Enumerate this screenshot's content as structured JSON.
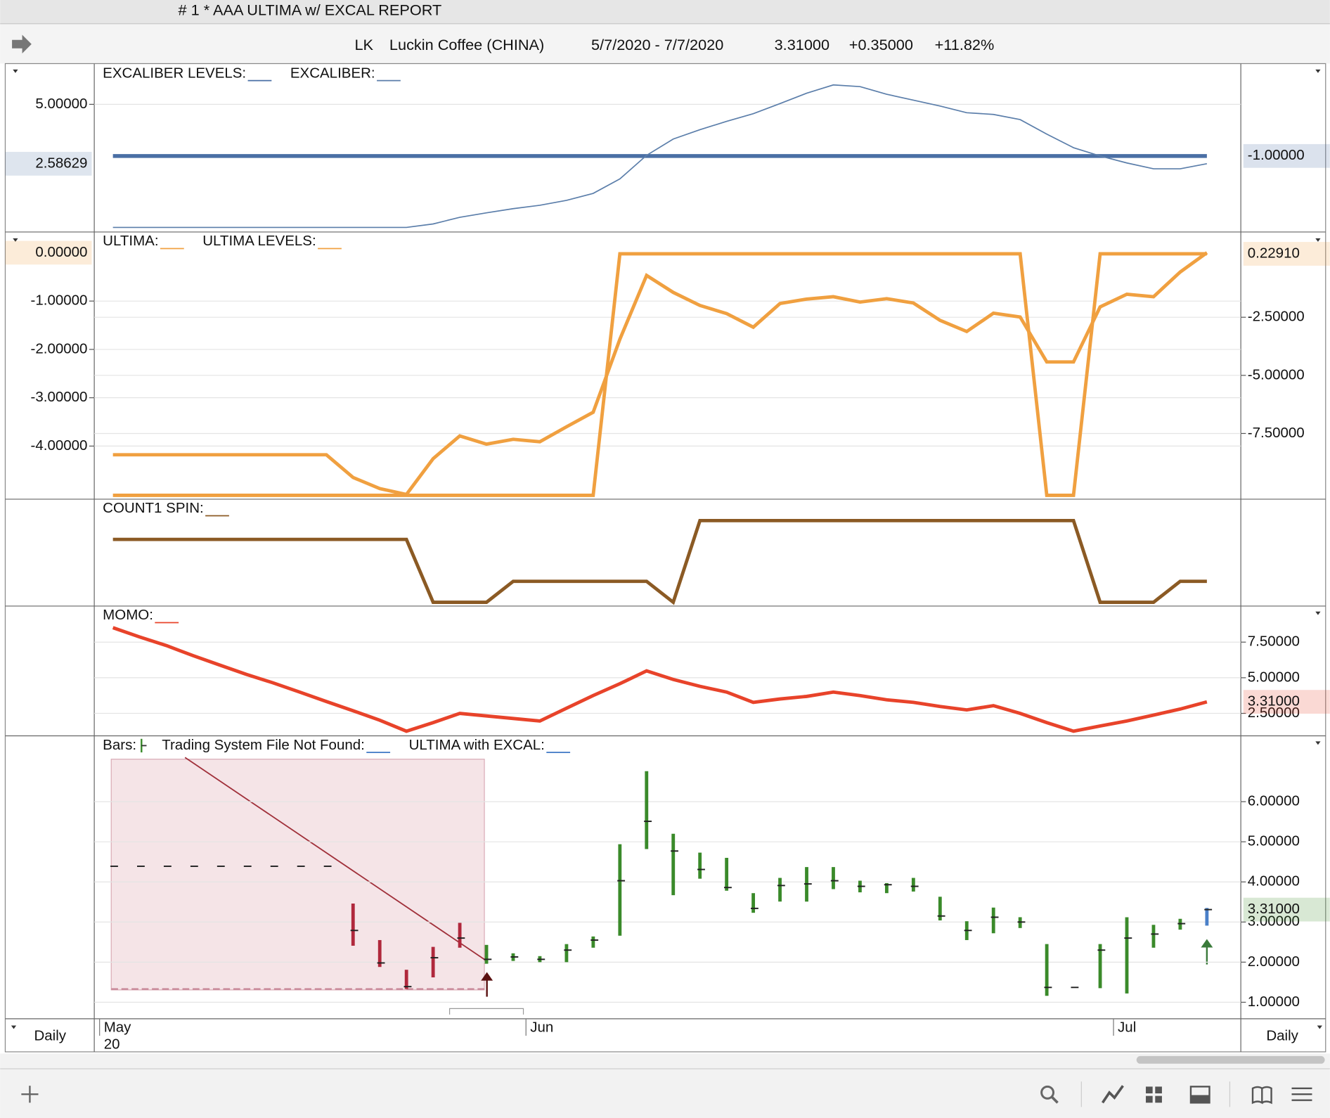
{
  "window_title": "# 1 * AAA ULTIMA w/ EXCAL REPORT",
  "symbol_bar": {
    "symbol": "LK",
    "name": "Luckin Coffee (CHINA)",
    "date_range": "5/7/2020 - 7/7/2020",
    "last": "3.31000",
    "change": "+0.35000",
    "change_pct": "+11.82%"
  },
  "chart_data": [
    {
      "type": "line",
      "grid": true,
      "last_value_badge": true,
      "series": [
        {
          "name": "EXCALIBER LEVELS:",
          "color": "#4a6fa5",
          "axis": "y2",
          "values": [
            -1,
            -1,
            -1,
            -1,
            -1,
            -1,
            -1,
            -1,
            -1,
            -1,
            -1,
            -1,
            -1,
            -1,
            -1,
            -1,
            -1,
            -1,
            -1,
            -1,
            -1,
            -1,
            -1,
            -1,
            -1,
            -1,
            -1,
            -1,
            -1,
            -1,
            -1,
            -1,
            -1,
            -1,
            -1,
            -1,
            -1,
            -1,
            -1,
            -1,
            -1,
            -1
          ],
          "value_labels": [
            null,
            null,
            null,
            null,
            null,
            null,
            null,
            null,
            null,
            null,
            null,
            null,
            null,
            null,
            null,
            null,
            null,
            null,
            null,
            null,
            null,
            null,
            null,
            null,
            null,
            null,
            null,
            null,
            null,
            null,
            null,
            null,
            null,
            null,
            null,
            null,
            null,
            null,
            null,
            null,
            null,
            "-1.00000"
          ]
        },
        {
          "name": "EXCALIBER:",
          "color": "#5b7eaa",
          "values": [
            0,
            0,
            0,
            0,
            0,
            0,
            0,
            0,
            0,
            0,
            0,
            0,
            0.14,
            0.41,
            0.59,
            0.76,
            0.9,
            1.1,
            1.38,
            1.97,
            2.93,
            3.59,
            3.97,
            4.31,
            4.62,
            5.03,
            5.45,
            5.79,
            5.72,
            5.41,
            5.17,
            4.93,
            4.66,
            4.59,
            4.38,
            3.79,
            3.24,
            2.9,
            2.62,
            2.38,
            2.38,
            2.58629
          ]
        }
      ],
      "ylim": [
        -0.17,
        6.62
      ],
      "yticks": [
        {
          "value": 5,
          "label": "5.00000"
        }
      ],
      "y2lim": [
        -2,
        0.21
      ],
      "y2ticks": []
    },
    {
      "type": "line",
      "grid": true,
      "last_value_badge": true,
      "series": [
        {
          "name": "ULTIMA:",
          "color": "#f0a040",
          "values": [
            -4.18,
            -4.18,
            -4.18,
            -4.18,
            -4.18,
            -4.18,
            -4.18,
            -4.18,
            -4.18,
            -4.65,
            -4.88,
            -5.0,
            -4.26,
            -3.79,
            -3.96,
            -3.86,
            -3.91,
            -3.6,
            -3.3,
            -1.79,
            -0.47,
            -0.82,
            -1.09,
            -1.26,
            -1.54,
            -1.05,
            -0.96,
            -0.91,
            -1.02,
            -0.95,
            -1.04,
            -1.4,
            -1.63,
            -1.25,
            -1.33,
            -2.26,
            -2.26,
            -1.12,
            -0.86,
            -0.91,
            -0.4,
            0
          ],
          "value_labels": [
            null,
            null,
            null,
            null,
            null,
            null,
            null,
            null,
            null,
            null,
            null,
            null,
            null,
            null,
            null,
            null,
            null,
            null,
            null,
            null,
            null,
            null,
            null,
            null,
            null,
            null,
            null,
            null,
            null,
            null,
            null,
            null,
            null,
            null,
            null,
            null,
            null,
            null,
            null,
            null,
            null,
            "0.00000"
          ]
        },
        {
          "name": "ULTIMA LEVELS:",
          "color": "#f0a040",
          "axis": "y2",
          "values": [
            -10.16,
            -10.16,
            -10.16,
            -10.16,
            -10.16,
            -10.16,
            -10.16,
            -10.16,
            -10.16,
            -10.16,
            -10.16,
            -10.16,
            -10.16,
            -10.16,
            -10.16,
            -10.16,
            -10.16,
            -10.16,
            -10.16,
            0.2291,
            0.2291,
            0.2291,
            0.2291,
            0.2291,
            0.2291,
            0.2291,
            0.2291,
            0.2291,
            0.2291,
            0.2291,
            0.2291,
            0.2291,
            0.2291,
            0.2291,
            0.2291,
            -10.16,
            -10.16,
            0.2291,
            0.2291,
            0.2291,
            0.2291,
            0.2291
          ],
          "value_labels": [
            null,
            null,
            null,
            null,
            null,
            null,
            null,
            null,
            null,
            null,
            null,
            null,
            null,
            null,
            null,
            null,
            null,
            null,
            null,
            null,
            null,
            null,
            null,
            null,
            null,
            null,
            null,
            null,
            null,
            null,
            null,
            null,
            null,
            null,
            null,
            null,
            null,
            null,
            null,
            null,
            null,
            "0.22910"
          ]
        }
      ],
      "ylim": [
        -5.09,
        0.42
      ],
      "yticks": [
        {
          "value": -1,
          "label": "-1.00000"
        },
        {
          "value": -2,
          "label": "-2.00000"
        },
        {
          "value": -3,
          "label": "-3.00000"
        },
        {
          "value": -4,
          "label": "-4.00000"
        }
      ],
      "y2lim": [
        -10.31,
        1.15
      ],
      "y2ticks": [
        {
          "value": -2.5,
          "label": "-2.50000"
        },
        {
          "value": -5,
          "label": "-5.00000"
        },
        {
          "value": -7.5,
          "label": "-7.50000"
        }
      ]
    },
    {
      "type": "line",
      "grid": false,
      "last_value_badge": false,
      "series": [
        {
          "name": "COUNT1 SPIN:",
          "color": "#8b5a24",
          "values": [
            3,
            3,
            3,
            3,
            3,
            3,
            3,
            3,
            3,
            3,
            3,
            3,
            0,
            0,
            0,
            1,
            1,
            1,
            1,
            1,
            1,
            0,
            3.9,
            3.9,
            3.9,
            3.9,
            3.9,
            3.9,
            3.9,
            3.9,
            3.9,
            3.9,
            3.9,
            3.9,
            3.9,
            3.9,
            3.9,
            0,
            0,
            0,
            1,
            1
          ]
        }
      ],
      "ylim": [
        -0.16,
        4.9
      ],
      "yticks": []
    },
    {
      "type": "line",
      "grid": true,
      "last_value_badge": true,
      "series": [
        {
          "name": "MOMO:",
          "color": "#e8432a",
          "axis": "y2",
          "values": [
            8.51,
            7.86,
            7.26,
            6.55,
            5.89,
            5.24,
            4.64,
            3.99,
            3.33,
            2.68,
            2.02,
            1.25,
            1.85,
            2.5,
            2.32,
            2.14,
            1.96,
            2.86,
            3.75,
            4.58,
            5.48,
            4.88,
            4.4,
            3.99,
            3.27,
            3.51,
            3.69,
            3.99,
            3.75,
            3.45,
            3.27,
            2.98,
            2.74,
            3.04,
            2.5,
            1.85,
            1.25,
            1.61,
            1.96,
            2.38,
            2.8,
            3.31
          ],
          "value_labels": [
            null,
            null,
            null,
            null,
            null,
            null,
            null,
            null,
            null,
            null,
            null,
            null,
            null,
            null,
            null,
            null,
            null,
            null,
            null,
            null,
            null,
            null,
            null,
            null,
            null,
            null,
            null,
            null,
            null,
            null,
            null,
            null,
            null,
            null,
            null,
            null,
            null,
            null,
            null,
            null,
            null,
            "3.31000"
          ]
        }
      ],
      "ylim": [
        1.01,
        10
      ],
      "yticks": [],
      "y2lim": [
        1.01,
        10
      ],
      "y2ticks": [
        {
          "value": 7.5,
          "label": "7.50000"
        },
        {
          "value": 5,
          "label": "5.00000"
        },
        {
          "value": 2.5,
          "label": "2.50000"
        }
      ]
    },
    {
      "type": "ohlc",
      "grid": true,
      "last_value_badge": true,
      "series": [
        {
          "name": "Bars:",
          "color": "#3a8a2a",
          "axis": "y2",
          "high": [
            4.39,
            4.39,
            4.39,
            4.39,
            4.39,
            4.39,
            4.39,
            4.39,
            4.39,
            3.46,
            2.55,
            1.81,
            2.38,
            2.98,
            2.43,
            2.22,
            2.15,
            2.45,
            2.64,
            4.94,
            6.76,
            5.2,
            4.73,
            4.6,
            3.72,
            4.1,
            4.37,
            4.37,
            4.03,
            3.97,
            4.1,
            3.63,
            3.02,
            3.36,
            3.12,
            2.45,
            1.37,
            2.45,
            3.12,
            2.93,
            3.08,
            3.35
          ],
          "low": [
            4.39,
            4.39,
            4.39,
            4.39,
            4.39,
            4.39,
            4.39,
            4.39,
            4.39,
            2.41,
            1.88,
            1.33,
            1.62,
            2.36,
            1.96,
            2.03,
            2.0,
            2.0,
            2.36,
            2.66,
            4.82,
            3.67,
            4.08,
            3.78,
            3.23,
            3.51,
            3.51,
            3.82,
            3.74,
            3.72,
            3.76,
            3.04,
            2.55,
            2.72,
            2.85,
            1.16,
            1.37,
            1.35,
            1.22,
            2.36,
            2.81,
            2.91
          ],
          "close": [
            4.39,
            4.39,
            4.39,
            4.39,
            4.39,
            4.39,
            4.39,
            4.39,
            4.39,
            2.79,
            1.98,
            1.39,
            2.11,
            2.6,
            2.07,
            2.13,
            2.07,
            2.3,
            2.55,
            4.03,
            5.51,
            4.77,
            4.31,
            3.86,
            3.34,
            3.91,
            3.95,
            4.03,
            3.89,
            3.93,
            3.89,
            3.15,
            2.79,
            3.12,
            3.0,
            1.37,
            1.37,
            2.3,
            2.6,
            2.7,
            2.96,
            3.31
          ],
          "colors": [
            "#333333",
            "#333333",
            "#333333",
            "#333333",
            "#333333",
            "#333333",
            "#333333",
            "#333333",
            "#333333",
            "#b0283c",
            "#b0283c",
            "#b0283c",
            "#b0283c",
            "#b0283c",
            "#3a8a2a",
            "#3a8a2a",
            "#3a8a2a",
            "#3a8a2a",
            "#3a8a2a",
            "#3a8a2a",
            "#3a8a2a",
            "#3a8a2a",
            "#3a8a2a",
            "#3a8a2a",
            "#3a8a2a",
            "#3a8a2a",
            "#3a8a2a",
            "#3a8a2a",
            "#3a8a2a",
            "#3a8a2a",
            "#3a8a2a",
            "#3a8a2a",
            "#3a8a2a",
            "#3a8a2a",
            "#3a8a2a",
            "#3a8a2a",
            "#3a8a2a",
            "#3a8a2a",
            "#3a8a2a",
            "#3a8a2a",
            "#3a8a2a",
            "#4a80c8"
          ],
          "value_labels": [
            null,
            null,
            null,
            null,
            null,
            null,
            null,
            null,
            null,
            null,
            null,
            null,
            null,
            null,
            null,
            null,
            null,
            null,
            null,
            null,
            null,
            null,
            null,
            null,
            null,
            null,
            null,
            null,
            null,
            null,
            null,
            null,
            null,
            null,
            null,
            null,
            null,
            null,
            null,
            null,
            null,
            "3.31000"
          ]
        }
      ],
      "legend_extra": [
        {
          "name": "Trading System File Not Found:",
          "color": "#4a80c8"
        },
        {
          "name": "ULTIMA with EXCAL:",
          "color": "#4a80c8"
        }
      ],
      "ylim": [
        0.61,
        7.63
      ],
      "yticks": [],
      "y2lim": [
        0.61,
        7.63
      ],
      "y2ticks": [
        {
          "value": 6,
          "label": "6.00000"
        },
        {
          "value": 5,
          "label": "5.00000"
        },
        {
          "value": 4,
          "label": "4.00000"
        },
        {
          "value": 3,
          "label": "3.00000"
        },
        {
          "value": 2,
          "label": "2.00000"
        },
        {
          "value": 1,
          "label": "1.00000"
        }
      ],
      "xticks": [
        {
          "value": -0.5,
          "label": "May"
        },
        {
          "value": 15.48,
          "label": "Jun"
        },
        {
          "value": 37.5,
          "label": "Jul"
        }
      ],
      "x_year_label": "20"
    }
  ],
  "footer": {
    "period_left": "Daily",
    "period_right": "Daily"
  }
}
